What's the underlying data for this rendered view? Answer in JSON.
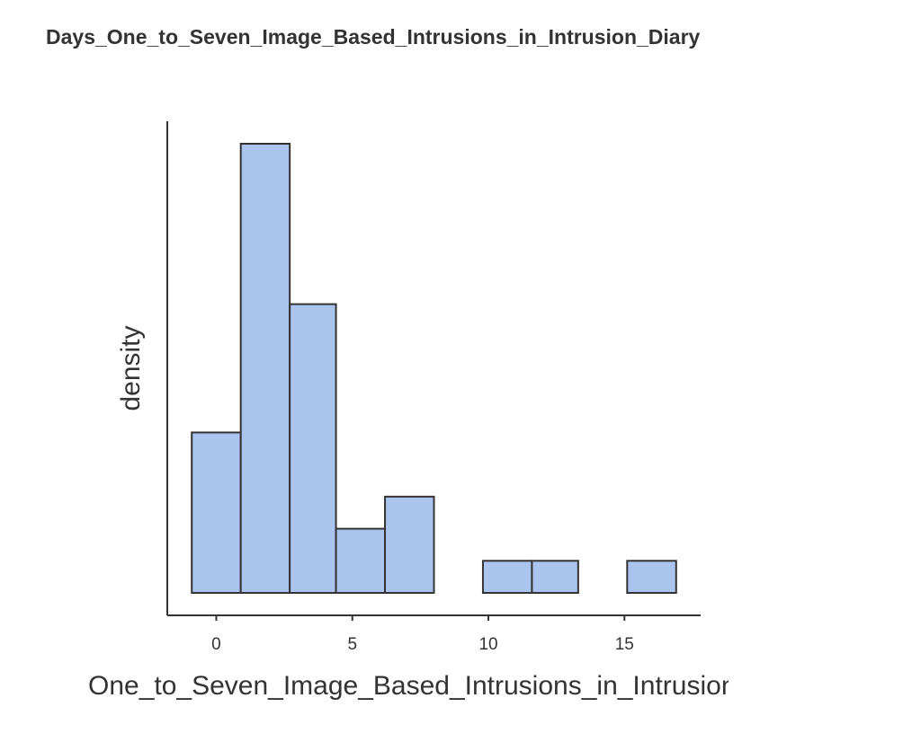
{
  "chart_data": {
    "type": "histogram",
    "title": "Days_One_to_Seven_Image_Based_Intrusions_in_Intrusion_Diary",
    "xlabel": "One_to_Seven_Image_Based_Intrusions_in_Intrusion_Diary",
    "ylabel": "density",
    "x_ticks": [
      0,
      5,
      10,
      15
    ],
    "x_tick_labels": [
      "0",
      "5",
      "10",
      "15"
    ],
    "xlim": [
      -1.8,
      17.8
    ],
    "y_ticks_shown": false,
    "bins": [
      {
        "start": -0.9,
        "end": 0.9,
        "relative_height": 5
      },
      {
        "start": 0.9,
        "end": 2.7,
        "relative_height": 14
      },
      {
        "start": 2.7,
        "end": 4.4,
        "relative_height": 9
      },
      {
        "start": 4.4,
        "end": 6.2,
        "relative_height": 2
      },
      {
        "start": 6.2,
        "end": 8.0,
        "relative_height": 3
      },
      {
        "start": 8.0,
        "end": 9.8,
        "relative_height": 0
      },
      {
        "start": 9.8,
        "end": 11.6,
        "relative_height": 1
      },
      {
        "start": 11.6,
        "end": 13.3,
        "relative_height": 1
      },
      {
        "start": 13.3,
        "end": 15.1,
        "relative_height": 0
      },
      {
        "start": 15.1,
        "end": 16.9,
        "relative_height": 1
      }
    ],
    "colors": {
      "bar_fill": "#abc4ee",
      "bar_stroke": "#333333",
      "axis": "#333333"
    },
    "grid": false,
    "legend": "none"
  }
}
